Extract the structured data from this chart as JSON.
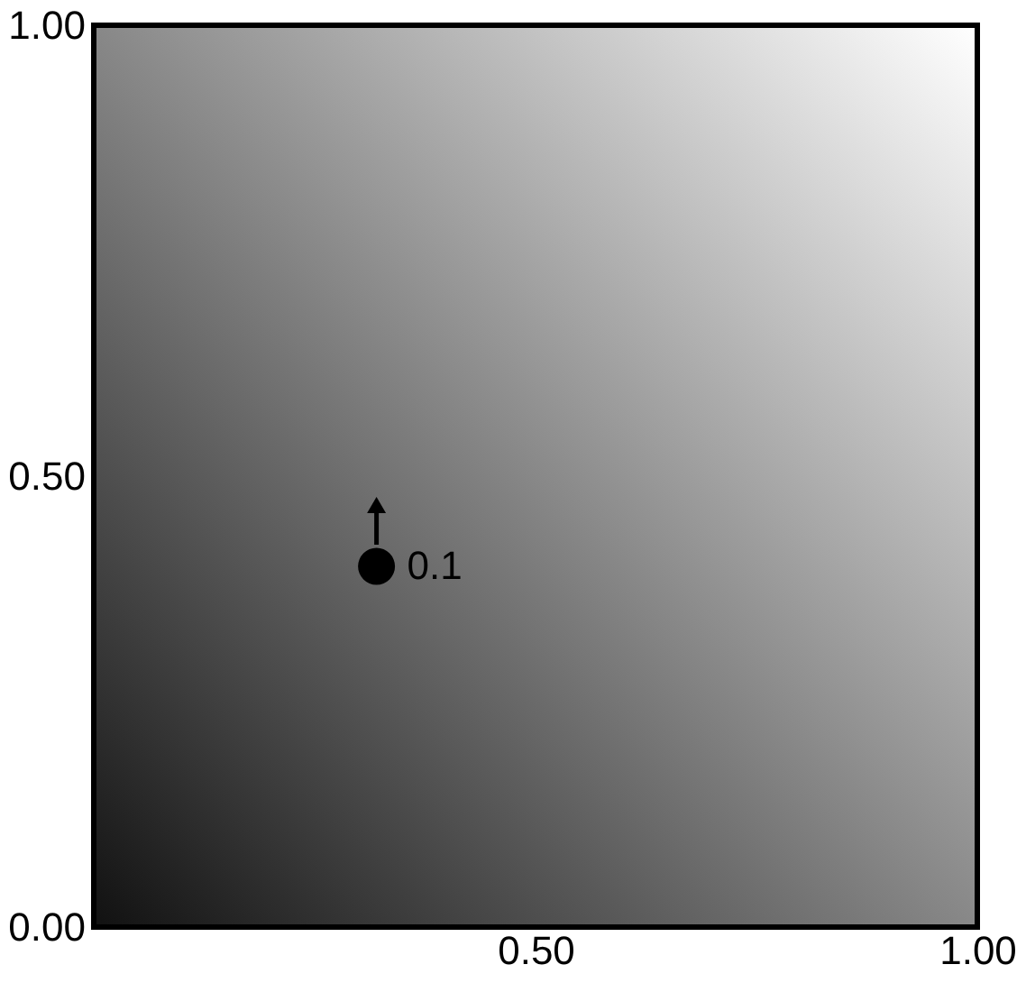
{
  "chart_data": {
    "type": "scatter",
    "x": [
      0.32
    ],
    "values": [
      0.4
    ],
    "color": "#000000",
    "marker": "circle",
    "xlim": [
      0,
      1
    ],
    "ylim": [
      0,
      1
    ],
    "xticks": [
      {
        "value": 0.5,
        "label": "0.50"
      },
      {
        "value": 1,
        "label": "1.00"
      }
    ],
    "yticks": [
      {
        "value": 0,
        "label": "0.00"
      },
      {
        "value": 0.5,
        "label": "0.50"
      },
      {
        "value": 1,
        "label": "1.00"
      }
    ],
    "annotations": [
      {
        "text": "0.1",
        "x": 0.32,
        "y": 0.4
      }
    ],
    "grid": false
  }
}
